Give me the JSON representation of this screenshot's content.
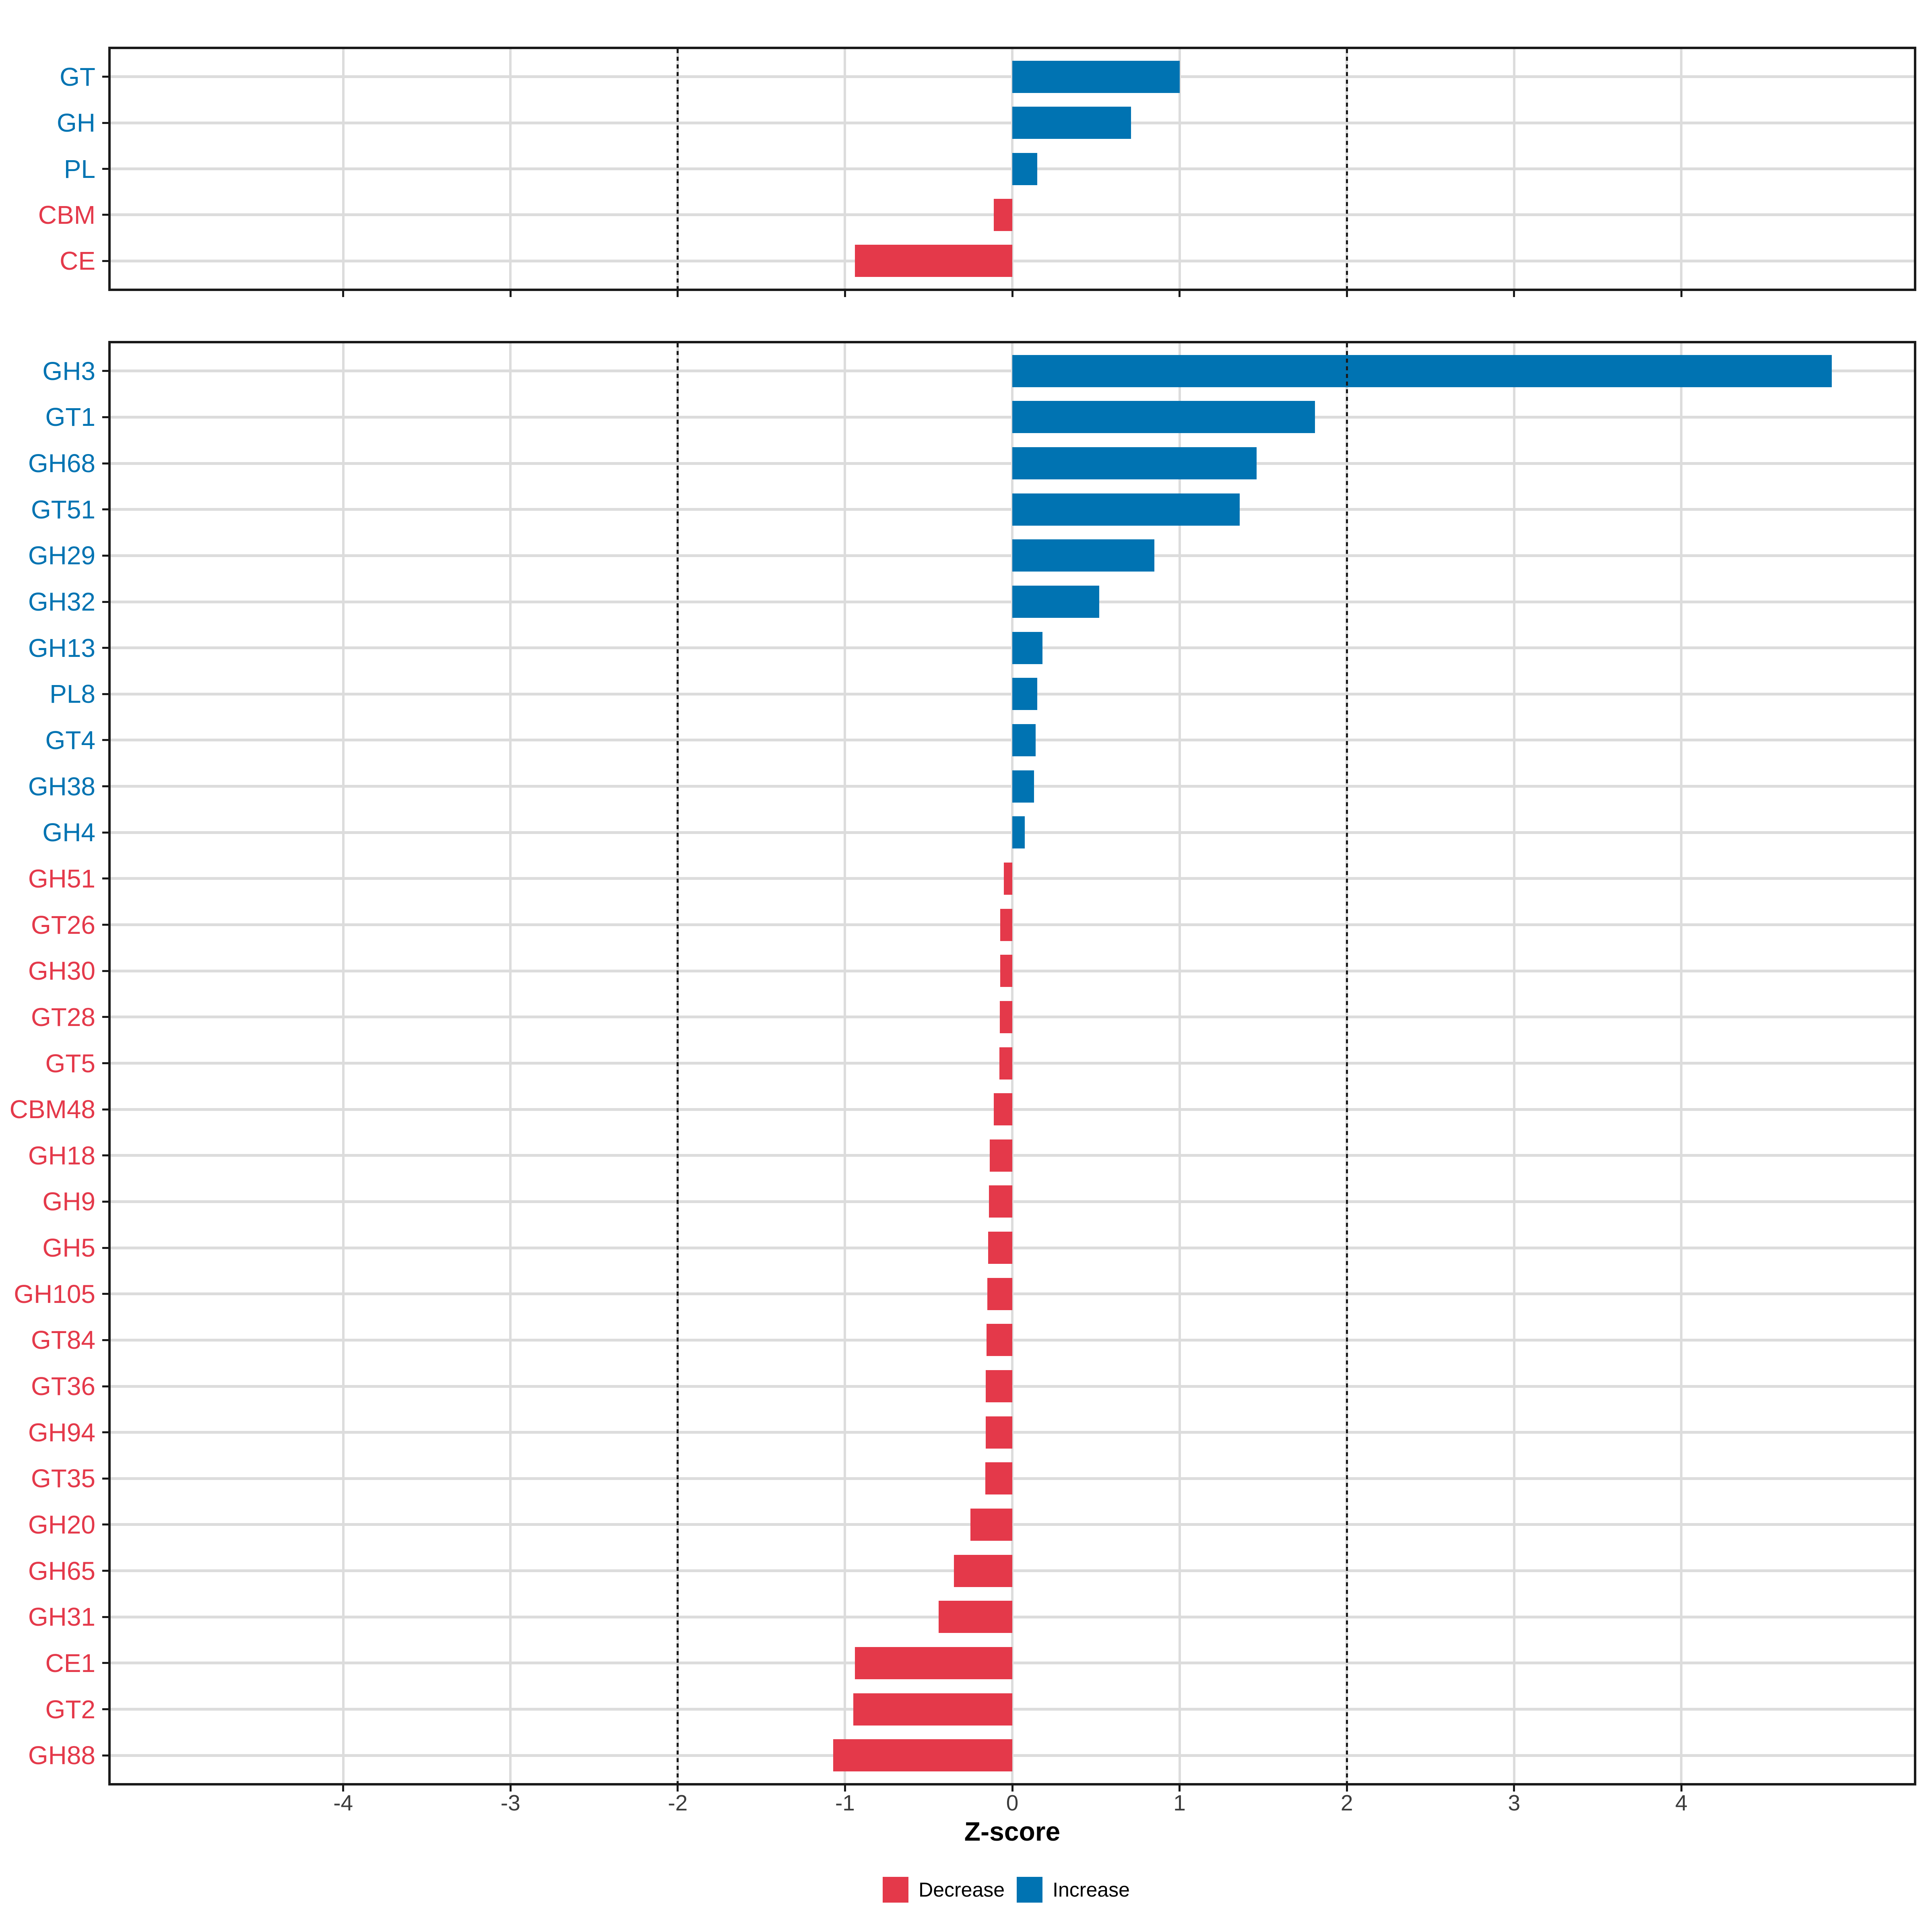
{
  "chart_data": [
    {
      "type": "bar",
      "orientation": "horizontal",
      "panel": "enzyme-classes",
      "categories": [
        "GT",
        "GH",
        "PL",
        "CBM",
        "CE"
      ],
      "values": [
        1.0,
        0.71,
        0.15,
        -0.11,
        -0.94
      ],
      "directions": [
        "increase",
        "increase",
        "increase",
        "decrease",
        "decrease"
      ],
      "xlabel": "Z-score",
      "xlim": [
        -5.39,
        5.39
      ],
      "x_breaks": [
        -4,
        -3,
        -2,
        -1,
        0,
        1,
        2,
        3,
        4
      ],
      "dashed_guides": [
        -2,
        2
      ],
      "grid": true,
      "legend_position": "bottom"
    },
    {
      "type": "bar",
      "orientation": "horizontal",
      "panel": "enzyme-families",
      "categories": [
        "GH3",
        "GT1",
        "GH68",
        "GT51",
        "GH29",
        "GH32",
        "GH13",
        "PL8",
        "GT4",
        "GH38",
        "GH4",
        "GH51",
        "GT26",
        "GH30",
        "GT28",
        "GT5",
        "CBM48",
        "GH18",
        "GH9",
        "GH5",
        "GH105",
        "GT84",
        "GT36",
        "GH94",
        "GT35",
        "GH20",
        "GH65",
        "GH31",
        "CE1",
        "GT2",
        "GH88"
      ],
      "values": [
        4.9,
        1.81,
        1.46,
        1.36,
        0.85,
        0.52,
        0.18,
        0.15,
        0.14,
        0.13,
        0.075,
        -0.05,
        -0.072,
        -0.073,
        -0.074,
        -0.078,
        -0.11,
        -0.135,
        -0.14,
        -0.145,
        -0.15,
        -0.155,
        -0.158,
        -0.16,
        -0.162,
        -0.25,
        -0.35,
        -0.44,
        -0.94,
        -0.95,
        -1.07
      ],
      "directions": [
        "increase",
        "increase",
        "increase",
        "increase",
        "increase",
        "increase",
        "increase",
        "increase",
        "increase",
        "increase",
        "increase",
        "decrease",
        "decrease",
        "decrease",
        "decrease",
        "decrease",
        "decrease",
        "decrease",
        "decrease",
        "decrease",
        "decrease",
        "decrease",
        "decrease",
        "decrease",
        "decrease",
        "decrease",
        "decrease",
        "decrease",
        "decrease",
        "decrease",
        "decrease"
      ],
      "xlabel": "Z-score",
      "xlim": [
        -5.39,
        5.39
      ],
      "x_breaks": [
        -4,
        -3,
        -2,
        -1,
        0,
        1,
        2,
        3,
        4
      ],
      "dashed_guides": [
        -2,
        2
      ],
      "grid": true,
      "legend_position": "bottom"
    }
  ],
  "axis": {
    "label": "Z-score",
    "tick_labels": [
      "-4",
      "-3",
      "-2",
      "-1",
      "0",
      "1",
      "2",
      "3",
      "4"
    ]
  },
  "legend": {
    "items": [
      {
        "label": "Decrease",
        "color": "#E4394A"
      },
      {
        "label": "Increase",
        "color": "#0073B2"
      }
    ]
  },
  "colors": {
    "increase": "#0073B2",
    "decrease": "#E4394A",
    "grid": "#DCDCDC",
    "axis_text": "#3C3C3C",
    "panel_border": "#1A1A1A",
    "guide_line": "#1A1A1A",
    "background": "#FFFFFF"
  }
}
